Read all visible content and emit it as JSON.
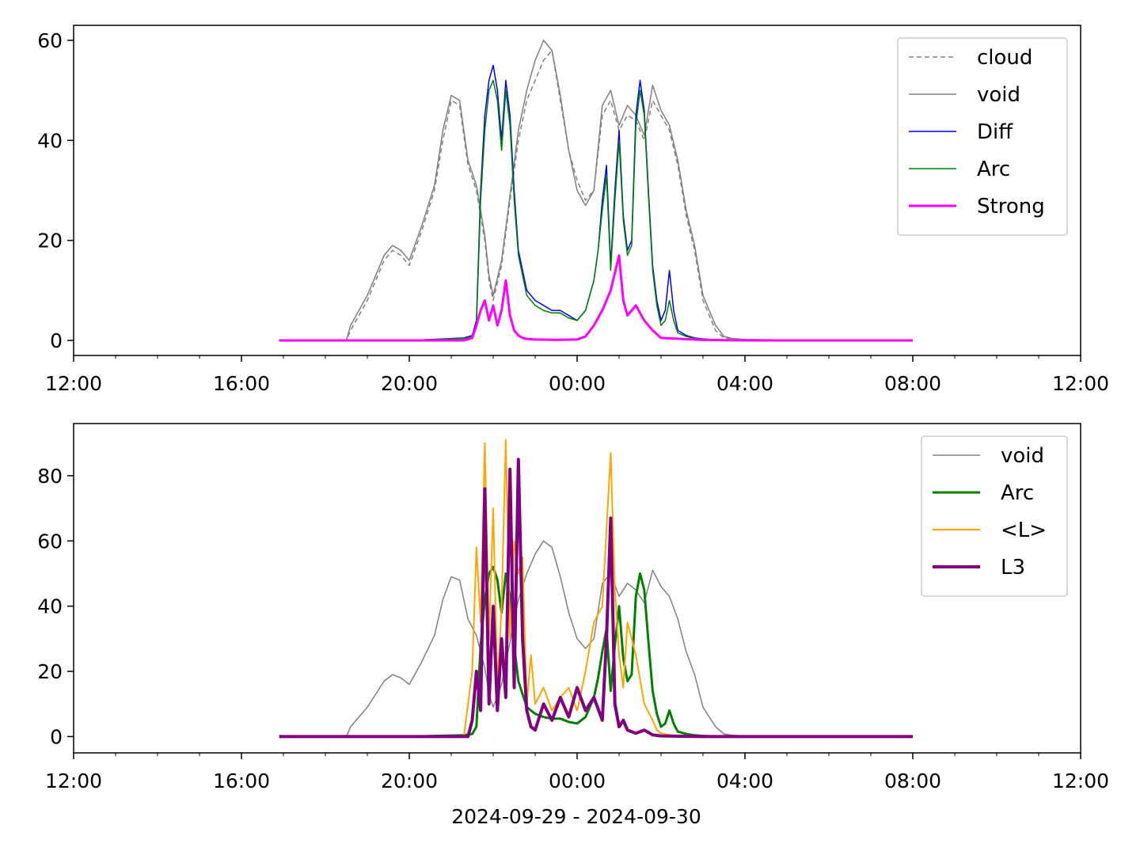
{
  "figure_xlabel": "2024-09-29 - 2024-09-30",
  "chart_data": [
    {
      "type": "line",
      "xaxis": {
        "type": "time_hours",
        "range": [
          12,
          36
        ],
        "ticks": [
          12,
          16,
          20,
          24,
          28,
          32,
          36
        ],
        "tick_labels": [
          "12:00",
          "16:00",
          "20:00",
          "00:00",
          "04:00",
          "08:00",
          "12:00"
        ],
        "minor_tick_step": 1
      },
      "yaxis": {
        "range": [
          -3,
          63
        ],
        "ticks": [
          0,
          20,
          40,
          60
        ],
        "tick_labels": [
          "0",
          "20",
          "40",
          "60"
        ]
      },
      "legend_position": "top-right",
      "grid": false,
      "series": [
        {
          "name": "cloud",
          "color": "#808080",
          "dash": true,
          "width": 1.5,
          "x": [
            16.9,
            18.5,
            18.6,
            18.8,
            19.0,
            19.2,
            19.4,
            19.6,
            19.8,
            20.0,
            20.3,
            20.6,
            20.8,
            21.0,
            21.2,
            21.4,
            21.6,
            21.8,
            21.9,
            22.0,
            22.2,
            22.4,
            22.6,
            22.8,
            23.0,
            23.2,
            23.4,
            23.6,
            23.8,
            24.0,
            24.2,
            24.4,
            24.6,
            24.8,
            25.0,
            25.2,
            25.4,
            25.6,
            25.8,
            26.0,
            26.2,
            26.4,
            26.6,
            26.8,
            27.0,
            27.3,
            27.5,
            27.7,
            28.0,
            29.0,
            30.0,
            31.0,
            31.5,
            32.0
          ],
          "y": [
            0,
            0,
            2,
            5,
            8,
            12,
            16,
            18,
            17,
            15,
            22,
            30,
            40,
            48,
            47,
            35,
            30,
            20,
            12,
            8,
            15,
            28,
            40,
            48,
            52,
            56,
            58,
            48,
            38,
            32,
            28,
            30,
            45,
            48,
            42,
            45,
            44,
            40,
            48,
            45,
            42,
            35,
            25,
            18,
            8,
            2,
            0.5,
            0.3,
            0.2,
            0.1,
            0,
            0,
            0,
            0
          ]
        },
        {
          "name": "void",
          "color": "#808080",
          "dash": false,
          "width": 1.5,
          "x": [
            16.9,
            18.5,
            18.6,
            18.8,
            19.0,
            19.2,
            19.4,
            19.6,
            19.8,
            20.0,
            20.3,
            20.6,
            20.8,
            21.0,
            21.2,
            21.4,
            21.6,
            21.8,
            21.9,
            22.0,
            22.2,
            22.4,
            22.6,
            22.8,
            23.0,
            23.2,
            23.4,
            23.6,
            23.8,
            24.0,
            24.2,
            24.4,
            24.6,
            24.8,
            25.0,
            25.2,
            25.4,
            25.6,
            25.8,
            26.0,
            26.2,
            26.4,
            26.6,
            26.8,
            27.0,
            27.3,
            27.5,
            27.7,
            28.0,
            29.0,
            30.0,
            31.0,
            31.5,
            32.0
          ],
          "y": [
            0,
            0,
            3,
            6,
            9,
            13,
            17,
            19,
            18,
            16,
            23,
            31,
            42,
            49,
            48,
            36,
            31,
            21,
            13,
            9,
            16,
            29,
            42,
            50,
            56,
            60,
            58,
            49,
            38,
            30,
            27,
            30,
            47,
            50,
            43,
            47,
            45,
            41,
            51,
            46,
            43,
            36,
            26,
            19,
            9,
            3,
            0.8,
            0.4,
            0.2,
            0.1,
            0,
            0,
            0,
            0
          ]
        },
        {
          "name": "Diff",
          "color": "#0000ff",
          "dash": false,
          "width": 1.5,
          "x": [
            16.9,
            20.0,
            21.3,
            21.5,
            21.6,
            21.7,
            21.8,
            21.9,
            22.0,
            22.1,
            22.2,
            22.3,
            22.4,
            22.5,
            22.6,
            22.7,
            22.8,
            22.9,
            23.0,
            23.2,
            23.4,
            23.6,
            23.8,
            24.0,
            24.2,
            24.3,
            24.4,
            24.5,
            24.6,
            24.7,
            24.8,
            24.9,
            25.0,
            25.1,
            25.2,
            25.3,
            25.4,
            25.5,
            25.6,
            25.7,
            25.8,
            25.9,
            26.0,
            26.1,
            26.2,
            26.3,
            26.4,
            26.6,
            26.8,
            27.0,
            27.2,
            27.5,
            28.0,
            29.0,
            30.0,
            31.0,
            31.5,
            32.0
          ],
          "y": [
            0,
            0,
            0.5,
            1,
            4,
            30,
            45,
            52,
            55,
            50,
            40,
            52,
            45,
            30,
            18,
            14,
            10,
            9,
            8,
            7,
            6,
            6,
            5,
            4,
            6,
            9,
            12,
            18,
            28,
            35,
            15,
            30,
            42,
            25,
            18,
            20,
            45,
            52,
            46,
            30,
            15,
            8,
            4,
            6,
            14,
            6,
            2,
            1,
            0.5,
            0.3,
            0.2,
            0.1,
            0,
            0,
            0,
            0,
            0,
            0
          ]
        },
        {
          "name": "Arc",
          "color": "#008000",
          "dash": false,
          "width": 1.5,
          "x": [
            16.9,
            20.0,
            21.3,
            21.5,
            21.6,
            21.7,
            21.8,
            21.9,
            22.0,
            22.1,
            22.2,
            22.3,
            22.4,
            22.5,
            22.6,
            22.7,
            22.8,
            22.9,
            23.0,
            23.2,
            23.4,
            23.6,
            23.8,
            24.0,
            24.2,
            24.3,
            24.4,
            24.5,
            24.6,
            24.7,
            24.8,
            24.9,
            25.0,
            25.1,
            25.2,
            25.3,
            25.4,
            25.5,
            25.6,
            25.7,
            25.8,
            25.9,
            26.0,
            26.1,
            26.2,
            26.3,
            26.4,
            26.6,
            26.8,
            27.0,
            27.2,
            27.5,
            28.0,
            29.0,
            30.0,
            31.0,
            31.5,
            32.0
          ],
          "y": [
            0,
            0,
            0.4,
            0.8,
            3,
            28,
            42,
            50,
            52,
            48,
            38,
            50,
            43,
            28,
            17,
            13,
            9,
            8,
            7,
            6,
            5.5,
            5.5,
            4.5,
            4,
            6,
            9,
            12,
            18,
            26,
            33,
            14,
            28,
            40,
            24,
            17,
            19,
            43,
            50,
            45,
            29,
            14,
            7,
            3,
            4,
            8,
            4,
            1.5,
            0.8,
            0.4,
            0.2,
            0.1,
            0.1,
            0,
            0,
            0,
            0,
            0,
            0
          ]
        },
        {
          "name": "Strong",
          "color": "#ff00ff",
          "dash": false,
          "width": 3,
          "x": [
            16.9,
            21.3,
            21.5,
            21.6,
            21.7,
            21.8,
            21.9,
            22.0,
            22.1,
            22.2,
            22.3,
            22.4,
            22.5,
            22.6,
            22.7,
            22.8,
            23.0,
            23.5,
            24.0,
            24.2,
            24.4,
            24.6,
            24.8,
            25.0,
            25.1,
            25.2,
            25.4,
            25.6,
            25.8,
            26.0,
            27.0,
            28.0,
            30.0,
            32.0
          ],
          "y": [
            0,
            0,
            0.5,
            3,
            6,
            8,
            4,
            7,
            3,
            6,
            12,
            5,
            2,
            1,
            0.5,
            0.3,
            0.2,
            0.1,
            0.2,
            0.8,
            3,
            6,
            10,
            17,
            8,
            5,
            7,
            4,
            2,
            0.5,
            0.1,
            0,
            0,
            0
          ]
        }
      ]
    },
    {
      "type": "line",
      "xaxis": {
        "type": "time_hours",
        "range": [
          12,
          36
        ],
        "ticks": [
          12,
          16,
          20,
          24,
          28,
          32,
          36
        ],
        "tick_labels": [
          "12:00",
          "16:00",
          "20:00",
          "00:00",
          "04:00",
          "08:00",
          "12:00"
        ],
        "minor_tick_step": 1
      },
      "yaxis": {
        "range": [
          -5,
          96
        ],
        "ticks": [
          0,
          20,
          40,
          60,
          80
        ],
        "tick_labels": [
          "0",
          "20",
          "40",
          "60",
          "80"
        ]
      },
      "legend_position": "top-right",
      "grid": false,
      "series": [
        {
          "name": "void",
          "color": "#808080",
          "dash": false,
          "width": 1.5,
          "x": [
            16.9,
            18.5,
            18.6,
            18.8,
            19.0,
            19.2,
            19.4,
            19.6,
            19.8,
            20.0,
            20.3,
            20.6,
            20.8,
            21.0,
            21.2,
            21.4,
            21.6,
            21.8,
            21.9,
            22.0,
            22.2,
            22.4,
            22.6,
            22.8,
            23.0,
            23.2,
            23.4,
            23.6,
            23.8,
            24.0,
            24.2,
            24.4,
            24.6,
            24.8,
            25.0,
            25.2,
            25.4,
            25.6,
            25.8,
            26.0,
            26.2,
            26.4,
            26.6,
            26.8,
            27.0,
            27.3,
            27.5,
            27.7,
            28.0,
            29.0,
            30.0,
            31.0,
            31.5,
            32.0
          ],
          "y": [
            0,
            0,
            3,
            6,
            9,
            13,
            17,
            19,
            18,
            16,
            23,
            31,
            42,
            49,
            48,
            36,
            31,
            21,
            13,
            9,
            16,
            29,
            42,
            50,
            56,
            60,
            58,
            49,
            38,
            30,
            27,
            30,
            47,
            50,
            43,
            47,
            45,
            41,
            51,
            46,
            43,
            36,
            26,
            19,
            9,
            3,
            0.8,
            0.4,
            0.2,
            0.1,
            0,
            0,
            0,
            0
          ]
        },
        {
          "name": "Arc",
          "color": "#008000",
          "dash": false,
          "width": 3,
          "x": [
            16.9,
            20.0,
            21.3,
            21.5,
            21.6,
            21.7,
            21.8,
            21.9,
            22.0,
            22.1,
            22.2,
            22.3,
            22.4,
            22.5,
            22.6,
            22.7,
            22.8,
            22.9,
            23.0,
            23.2,
            23.4,
            23.6,
            23.8,
            24.0,
            24.2,
            24.3,
            24.4,
            24.5,
            24.6,
            24.7,
            24.8,
            24.9,
            25.0,
            25.1,
            25.2,
            25.3,
            25.4,
            25.5,
            25.6,
            25.7,
            25.8,
            25.9,
            26.0,
            26.1,
            26.2,
            26.3,
            26.4,
            26.6,
            26.8,
            27.0,
            27.2,
            27.5,
            28.0,
            29.0,
            30.0,
            31.0,
            31.5,
            32.0
          ],
          "y": [
            0,
            0,
            0.4,
            0.8,
            3,
            28,
            42,
            50,
            52,
            48,
            38,
            50,
            43,
            28,
            17,
            13,
            9,
            8,
            7,
            6,
            5.5,
            5.5,
            4.5,
            4,
            6,
            9,
            12,
            18,
            26,
            33,
            14,
            28,
            40,
            24,
            17,
            19,
            43,
            50,
            45,
            29,
            14,
            7,
            3,
            4,
            8,
            4,
            1.5,
            0.8,
            0.4,
            0.2,
            0.1,
            0.1,
            0,
            0,
            0,
            0,
            0,
            0
          ]
        },
        {
          "name": "<L>",
          "color": "#ffa500",
          "dash": false,
          "width": 2,
          "x": [
            16.9,
            21.3,
            21.5,
            21.6,
            21.7,
            21.8,
            21.9,
            22.0,
            22.1,
            22.2,
            22.3,
            22.4,
            22.5,
            22.6,
            22.7,
            22.8,
            22.9,
            23.0,
            23.2,
            23.4,
            23.6,
            23.8,
            24.0,
            24.2,
            24.4,
            24.6,
            24.8,
            24.9,
            25.0,
            25.1,
            25.2,
            25.4,
            25.6,
            25.8,
            25.9,
            26.0,
            26.2,
            26.4,
            27.0,
            28.0,
            30.0,
            32.0
          ],
          "y": [
            0,
            0,
            20,
            58,
            35,
            90,
            30,
            70,
            15,
            40,
            91,
            30,
            60,
            50,
            55,
            10,
            25,
            10,
            15,
            8,
            12,
            15,
            8,
            20,
            35,
            40,
            87,
            45,
            25,
            15,
            35,
            25,
            10,
            5,
            2,
            1,
            0.5,
            0.2,
            0,
            0,
            0,
            0
          ]
        },
        {
          "name": "L3",
          "color": "#800080",
          "dash": false,
          "width": 4,
          "x": [
            16.9,
            21.4,
            21.5,
            21.6,
            21.7,
            21.8,
            21.9,
            22.0,
            22.1,
            22.2,
            22.3,
            22.4,
            22.5,
            22.6,
            22.7,
            22.8,
            22.9,
            23.0,
            23.2,
            23.4,
            23.6,
            23.8,
            24.0,
            24.2,
            24.4,
            24.6,
            24.7,
            24.8,
            24.9,
            25.0,
            25.1,
            25.2,
            25.4,
            25.6,
            25.8,
            26.0,
            27.0,
            28.0,
            30.0,
            32.0
          ],
          "y": [
            0,
            0,
            5,
            20,
            8,
            76,
            10,
            40,
            8,
            30,
            12,
            82,
            15,
            85,
            30,
            8,
            3,
            2,
            10,
            5,
            12,
            6,
            15,
            8,
            12,
            5,
            30,
            67,
            10,
            3,
            5,
            2,
            1,
            2,
            0.5,
            0.2,
            0,
            0,
            0,
            0
          ]
        }
      ]
    }
  ]
}
